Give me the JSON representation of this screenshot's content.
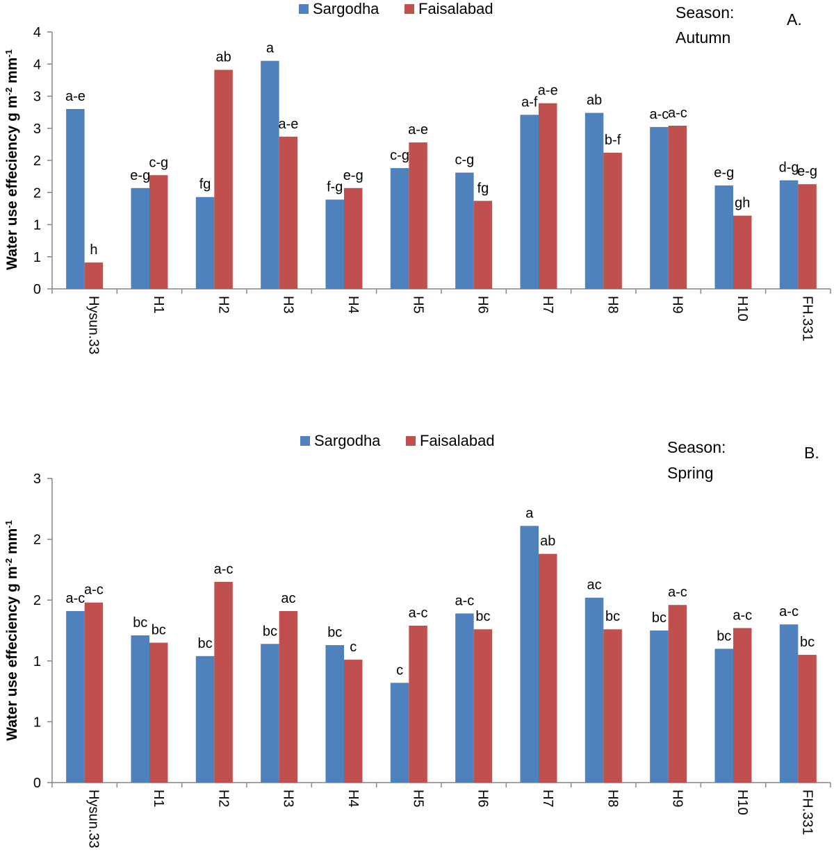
{
  "chart_data": [
    {
      "type": "bar",
      "panel": "A.",
      "season_label": "Season:",
      "season_name": "Autumn",
      "ylabel": "Water use effeciency g m",
      "ylabel_sup1": "-2",
      "ylabel_mid": " mm",
      "ylabel_sup2": "-1",
      "xlabel": "",
      "ylim": [
        0,
        4
      ],
      "yticks": [
        0,
        0.5,
        1,
        1.5,
        2,
        2.5,
        3,
        3.5,
        4
      ],
      "ytick_labels": [
        "0",
        "1",
        "1",
        "2",
        "2",
        "3",
        "3",
        "4",
        "4"
      ],
      "categories": [
        "Hysun.33",
        "H1",
        "H2",
        "H3",
        "H4",
        "H5",
        "H6",
        "H7",
        "H8",
        "H9",
        "H10",
        "FH.331"
      ],
      "series": [
        {
          "name": "Sargodha",
          "color": "#4F81BD",
          "values": [
            2.8,
            1.57,
            1.43,
            3.55,
            1.39,
            1.88,
            1.81,
            2.71,
            2.74,
            2.52,
            1.61,
            1.69
          ],
          "labels": [
            "a-e",
            "e-g",
            "fg",
            "a",
            "f-g",
            "c-g",
            "c-g",
            "a-f",
            "ab",
            "a-c",
            "e-g",
            "d-g"
          ]
        },
        {
          "name": "Faisalabad",
          "color": "#C0504D",
          "values": [
            0.41,
            1.77,
            3.41,
            2.37,
            1.57,
            2.28,
            1.37,
            2.89,
            2.12,
            2.54,
            1.14,
            1.63
          ],
          "labels": [
            "h",
            "c-g",
            "ab",
            "a-e",
            "e-g",
            "a-e",
            "fg",
            "a-e",
            "b-f",
            "a-c",
            "gh",
            "e-g"
          ]
        }
      ]
    },
    {
      "type": "bar",
      "panel": "B.",
      "season_label": "Season:",
      "season_name": "Spring",
      "ylabel": "Water use effeciency g m",
      "ylabel_sup1": "-2",
      "ylabel_mid": " mm",
      "ylabel_sup2": "-1",
      "xlabel": "",
      "ylim": [
        0,
        2.5
      ],
      "yticks": [
        0,
        0.5,
        1,
        1.5,
        2,
        2.5
      ],
      "ytick_labels": [
        "0",
        "1",
        "1",
        "2",
        "2",
        "3"
      ],
      "categories": [
        "Hysun.33",
        "H1",
        "H2",
        "H3",
        "H4",
        "H5",
        "H6",
        "H7",
        "H8",
        "H9",
        "H10",
        "FH.331"
      ],
      "series": [
        {
          "name": "Sargodha",
          "color": "#4F81BD",
          "values": [
            1.41,
            1.21,
            1.04,
            1.14,
            1.13,
            0.82,
            1.39,
            2.11,
            1.52,
            1.25,
            1.1,
            1.3
          ],
          "labels": [
            "a-c",
            "bc",
            "bc",
            "bc",
            "bc",
            "c",
            "a-c",
            "a",
            "ac",
            "bc",
            "bc",
            "a-c"
          ]
        },
        {
          "name": "Faisalabad",
          "color": "#C0504D",
          "values": [
            1.48,
            1.15,
            1.65,
            1.41,
            1.01,
            1.29,
            1.26,
            1.88,
            1.26,
            1.46,
            1.27,
            1.05
          ],
          "labels": [
            "a-c",
            "bc",
            "a-c",
            "ac",
            "c",
            "a-c",
            "bc",
            "ab",
            "bc",
            "a-c",
            "a-c",
            "bc"
          ]
        }
      ]
    }
  ]
}
